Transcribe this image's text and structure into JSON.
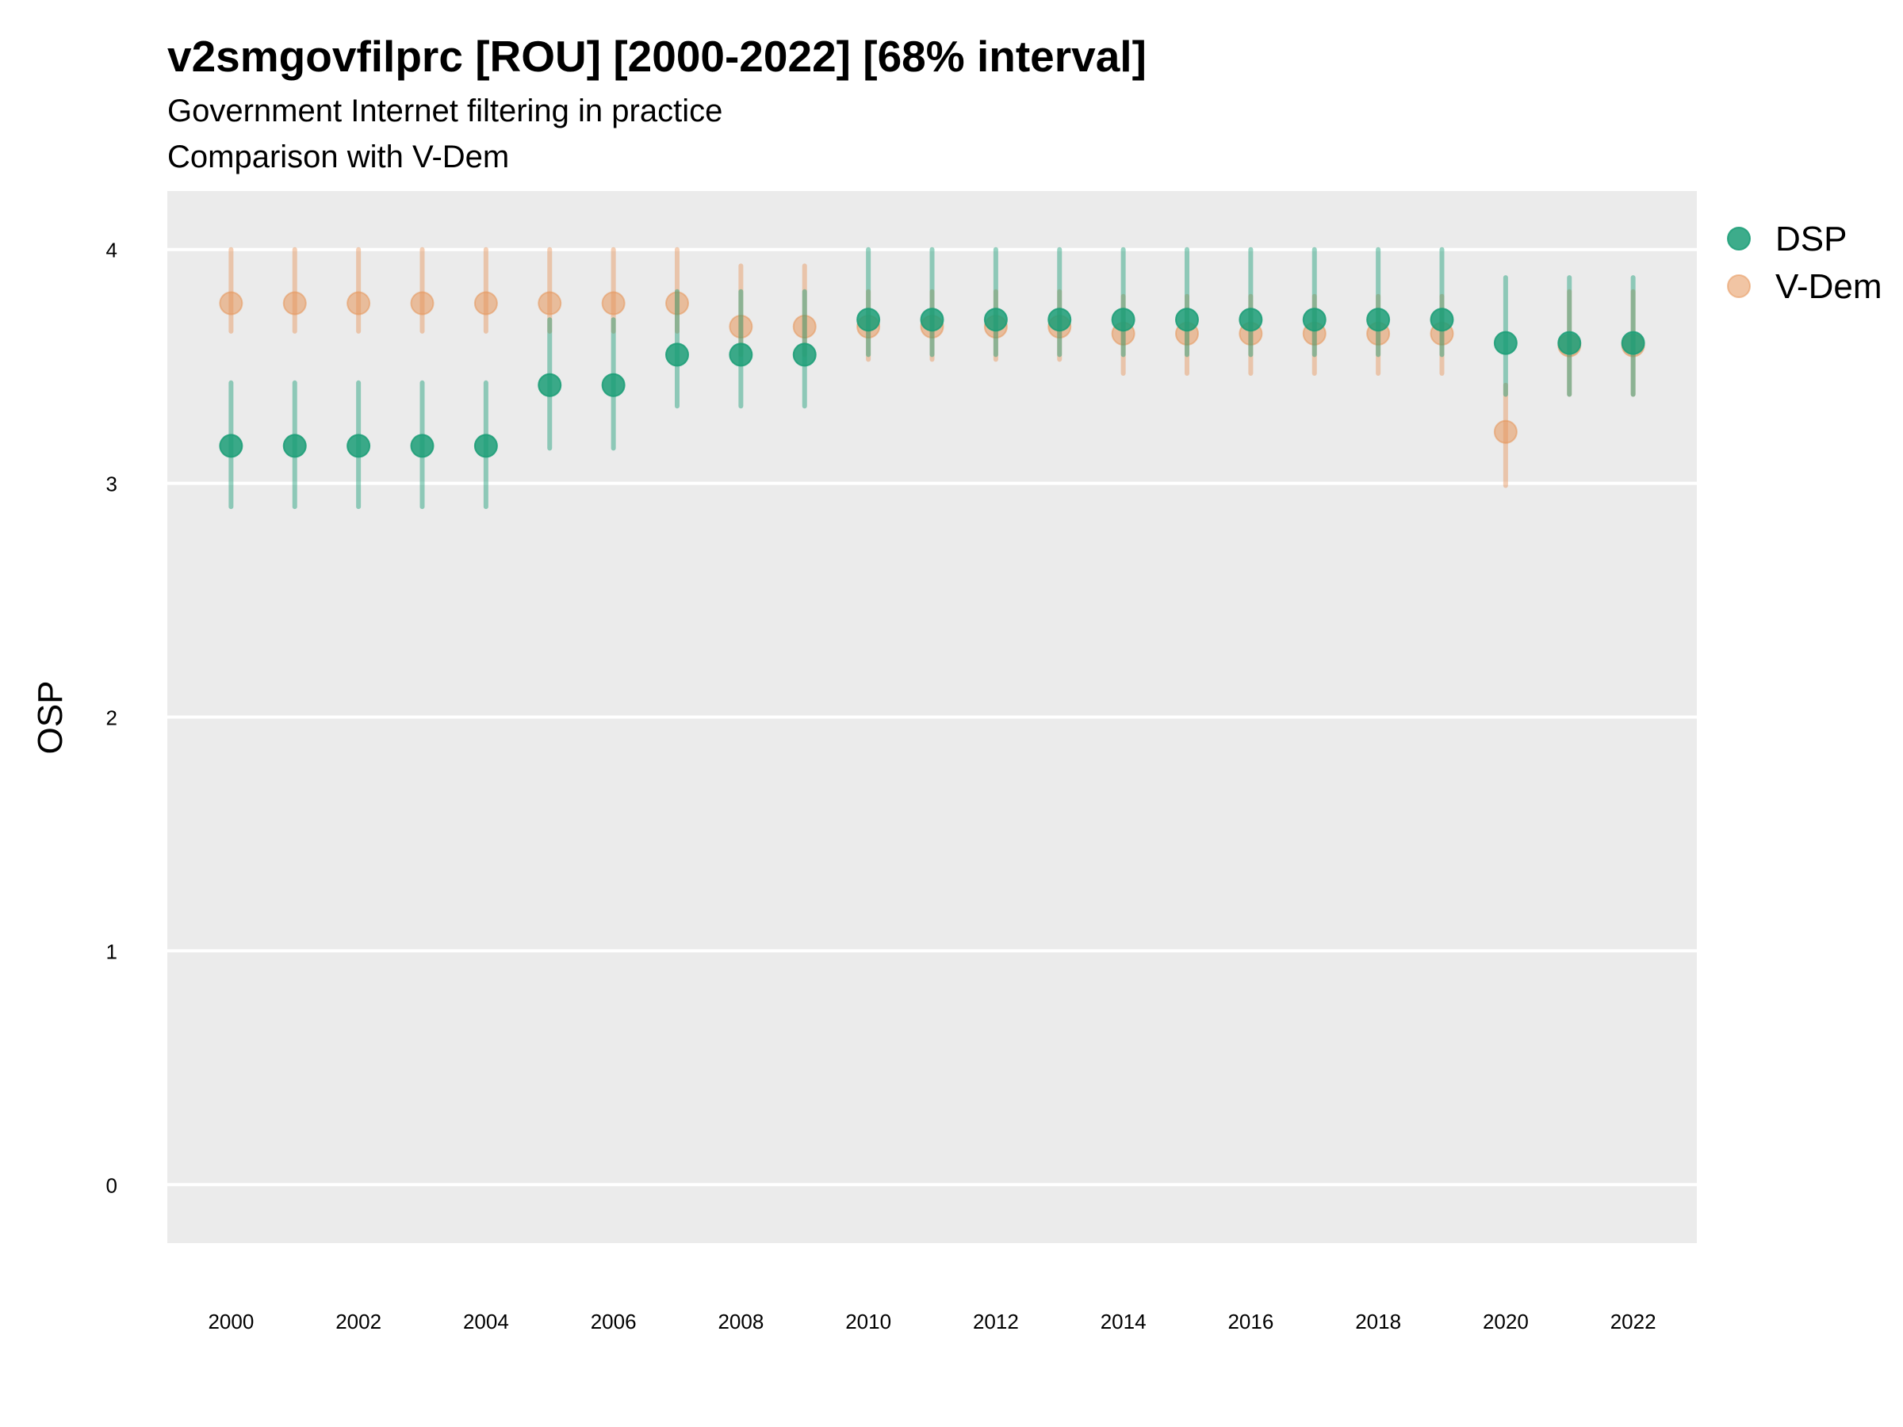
{
  "chart_data": {
    "type": "scatter",
    "title": "v2smgovfilprc [ROU] [2000-2022] [68% interval]",
    "subtitle": "Government Internet filtering in practice",
    "subtitle2": "Comparison with V-Dem",
    "xlabel": "",
    "ylabel": "OSP",
    "xlim": [
      1999,
      2023
    ],
    "ylim": [
      -0.25,
      4.25
    ],
    "x_ticks": [
      2000,
      2002,
      2004,
      2006,
      2008,
      2010,
      2012,
      2014,
      2016,
      2018,
      2020,
      2022
    ],
    "y_ticks": [
      0,
      1,
      2,
      3,
      4
    ],
    "grid": true,
    "legend_position": "right",
    "series": [
      {
        "name": "V-Dem",
        "color": "#E6955A",
        "x": [
          2000,
          2001,
          2002,
          2003,
          2004,
          2005,
          2006,
          2007,
          2008,
          2009,
          2010,
          2011,
          2012,
          2013,
          2014,
          2015,
          2016,
          2017,
          2018,
          2019,
          2020,
          2021,
          2022
        ],
        "y": [
          3.77,
          3.77,
          3.77,
          3.77,
          3.77,
          3.77,
          3.77,
          3.77,
          3.67,
          3.67,
          3.67,
          3.67,
          3.67,
          3.67,
          3.64,
          3.64,
          3.64,
          3.64,
          3.64,
          3.64,
          3.22,
          3.59,
          3.59
        ],
        "lower": [
          3.65,
          3.65,
          3.65,
          3.65,
          3.65,
          3.65,
          3.65,
          3.65,
          3.55,
          3.55,
          3.53,
          3.53,
          3.53,
          3.53,
          3.47,
          3.47,
          3.47,
          3.47,
          3.47,
          3.47,
          2.99,
          3.38,
          3.38
        ],
        "upper": [
          4.0,
          4.0,
          4.0,
          4.0,
          4.0,
          4.0,
          4.0,
          4.0,
          3.93,
          3.93,
          3.82,
          3.82,
          3.82,
          3.82,
          3.8,
          3.8,
          3.8,
          3.8,
          3.8,
          3.8,
          3.42,
          3.82,
          3.82
        ]
      },
      {
        "name": "DSP",
        "color": "#1B9E77",
        "x": [
          2000,
          2001,
          2002,
          2003,
          2004,
          2005,
          2006,
          2007,
          2008,
          2009,
          2010,
          2011,
          2012,
          2013,
          2014,
          2015,
          2016,
          2017,
          2018,
          2019,
          2020,
          2021,
          2022
        ],
        "y": [
          3.16,
          3.16,
          3.16,
          3.16,
          3.16,
          3.42,
          3.42,
          3.55,
          3.55,
          3.55,
          3.7,
          3.7,
          3.7,
          3.7,
          3.7,
          3.7,
          3.7,
          3.7,
          3.7,
          3.7,
          3.6,
          3.6,
          3.6
        ],
        "lower": [
          2.9,
          2.9,
          2.9,
          2.9,
          2.9,
          3.15,
          3.15,
          3.33,
          3.33,
          3.33,
          3.55,
          3.55,
          3.55,
          3.55,
          3.55,
          3.55,
          3.55,
          3.55,
          3.55,
          3.55,
          3.38,
          3.38,
          3.38
        ],
        "upper": [
          3.43,
          3.43,
          3.43,
          3.43,
          3.43,
          3.7,
          3.7,
          3.82,
          3.82,
          3.82,
          4.0,
          4.0,
          4.0,
          4.0,
          4.0,
          4.0,
          4.0,
          4.0,
          4.0,
          4.0,
          3.88,
          3.88,
          3.88
        ]
      }
    ],
    "legend_order": [
      "DSP",
      "V-Dem"
    ]
  }
}
